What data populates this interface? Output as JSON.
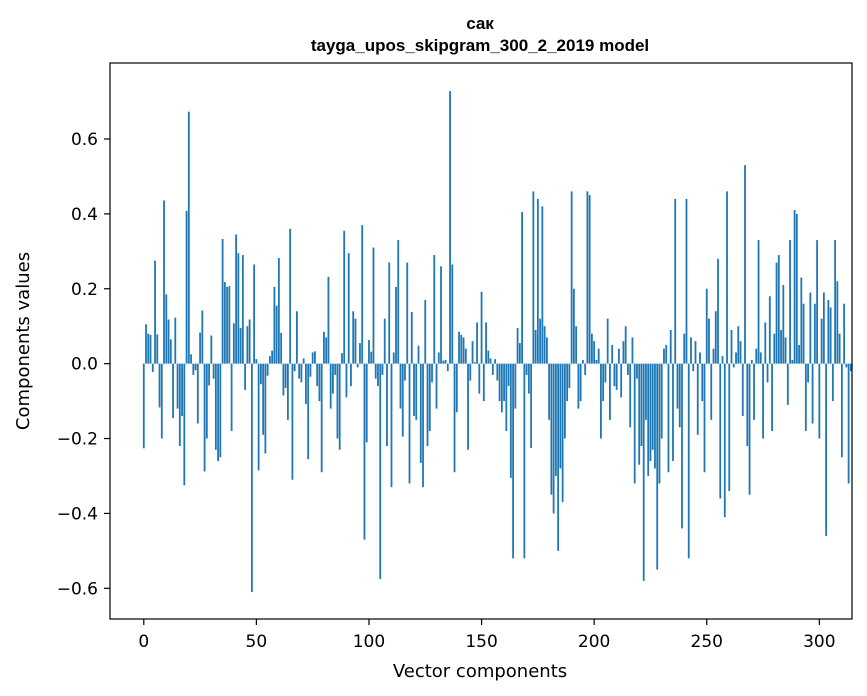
{
  "chart_data": {
    "type": "bar",
    "title_line1": "сак",
    "title_line2": "tayga_upos_skipgram_300_2_2019 model",
    "xlabel": "Vector components",
    "ylabel": "Components values",
    "xlim": [
      -15,
      314.5
    ],
    "ylim": [
      -0.682,
      0.803
    ],
    "xticks": [
      0,
      50,
      100,
      150,
      200,
      250,
      300
    ],
    "yticks": [
      -0.6,
      -0.4,
      -0.2,
      0.0,
      0.2,
      0.4,
      0.6
    ],
    "ytick_labels": [
      "−0.6",
      "−0.4",
      "−0.2",
      "0.0",
      "0.2",
      "0.4",
      "0.6"
    ],
    "bar_color": "#1f77b4",
    "values": [
      -0.226,
      0.105,
      0.08,
      0.077,
      -0.022,
      0.275,
      0.078,
      -0.117,
      -0.2,
      0.436,
      0.185,
      0.118,
      0.065,
      -0.145,
      0.123,
      -0.12,
      -0.22,
      -0.14,
      -0.325,
      0.408,
      0.673,
      0.025,
      -0.03,
      -0.018,
      -0.16,
      0.083,
      0.142,
      -0.288,
      -0.2,
      -0.058,
      0.075,
      -0.04,
      -0.23,
      -0.26,
      -0.25,
      0.333,
      0.218,
      0.205,
      0.207,
      -0.18,
      0.108,
      0.345,
      0.295,
      0.095,
      0.29,
      -0.07,
      0.1,
      0.118,
      -0.61,
      0.265,
      0.012,
      -0.285,
      -0.055,
      -0.19,
      -0.24,
      -0.032,
      0.02,
      0.035,
      0.205,
      0.155,
      0.282,
      0.082,
      -0.085,
      -0.065,
      -0.15,
      0.36,
      -0.31,
      -0.02,
      0.14,
      -0.04,
      -0.05,
      0.014,
      -0.108,
      -0.255,
      -0.035,
      0.03,
      0.033,
      -0.06,
      -0.1,
      -0.29,
      0.085,
      0.07,
      0.232,
      -0.12,
      -0.08,
      -0.03,
      -0.2,
      -0.23,
      0.028,
      0.355,
      -0.09,
      0.295,
      -0.06,
      0.14,
      0.12,
      -0.01,
      0.055,
      0.37,
      -0.47,
      -0.21,
      0.063,
      0.032,
      0.31,
      -0.04,
      -0.06,
      -0.575,
      -0.03,
      0.12,
      -0.22,
      0.27,
      -0.33,
      0.03,
      0.205,
      0.33,
      -0.12,
      -0.195,
      -0.045,
      0.27,
      -0.32,
      0.138,
      -0.14,
      -0.15,
      0.048,
      -0.265,
      -0.33,
      0.17,
      -0.22,
      -0.18,
      -0.05,
      0.29,
      -0.12,
      0.03,
      0.26,
      0.008,
      0.01,
      -0.02,
      0.728,
      0.265,
      -0.29,
      -0.13,
      0.085,
      0.077,
      0.07,
      0.04,
      -0.23,
      -0.045,
      0.06,
      0.004,
      0.11,
      -0.08,
      0.192,
      -0.1,
      0.11,
      0.035,
      0.014,
      -0.03,
      0.012,
      -0.045,
      -0.1,
      -0.13,
      -0.1,
      -0.18,
      -0.06,
      -0.305,
      -0.52,
      -0.12,
      0.095,
      0.055,
      0.405,
      -0.52,
      -0.03,
      -0.08,
      -0.225,
      0.46,
      0.09,
      0.44,
      0.12,
      0.42,
      0.1,
      0.07,
      -0.15,
      -0.35,
      -0.4,
      -0.3,
      -0.5,
      -0.28,
      -0.37,
      -0.2,
      -0.1,
      -0.065,
      0.46,
      0.2,
      0.1,
      -0.12,
      -0.1,
      0.01,
      -0.03,
      0.46,
      0.45,
      0.08,
      0.06,
      0.01,
      0.04,
      -0.2,
      -0.1,
      -0.05,
      0.12,
      -0.15,
      0.05,
      -0.06,
      -0.07,
      0.04,
      -0.09,
      0.06,
      0.1,
      -0.03,
      -0.17,
      0.07,
      -0.32,
      -0.04,
      -0.27,
      -0.22,
      -0.58,
      -0.15,
      -0.3,
      -0.26,
      -0.23,
      -0.28,
      -0.55,
      -0.32,
      -0.2,
      0.04,
      0.05,
      -0.29,
      0.09,
      -0.26,
      0.44,
      -0.12,
      -0.17,
      -0.44,
      0.08,
      0.44,
      -0.52,
      0.07,
      -0.02,
      0.06,
      -0.19,
      0.03,
      -0.1,
      -0.29,
      0.2,
      0.12,
      -0.15,
      0.04,
      0.14,
      0.28,
      -0.36,
      0.02,
      -0.41,
      0.46,
      -0.34,
      0.09,
      -0.01,
      0.03,
      0.1,
      0.06,
      -0.14,
      0.53,
      -0.22,
      -0.35,
      0.01,
      -0.15,
      0.04,
      0.33,
      0.03,
      -0.2,
      0.11,
      -0.05,
      0.18,
      -0.18,
      0.08,
      0.27,
      0.29,
      0.09,
      0.21,
      0.07,
      -0.11,
      0.33,
      0.01,
      0.41,
      0.4,
      0.05,
      0.23,
      0.16,
      -0.18,
      -0.05,
      0.19,
      -0.16,
      0.16,
      0.33,
      -0.2,
      0.12,
      0.19,
      -0.46,
      0.17,
      0.15,
      -0.1,
      0.33,
      0.22,
      0.08,
      -0.25,
      0.16,
      -0.01,
      -0.32,
      -0.02
    ]
  }
}
